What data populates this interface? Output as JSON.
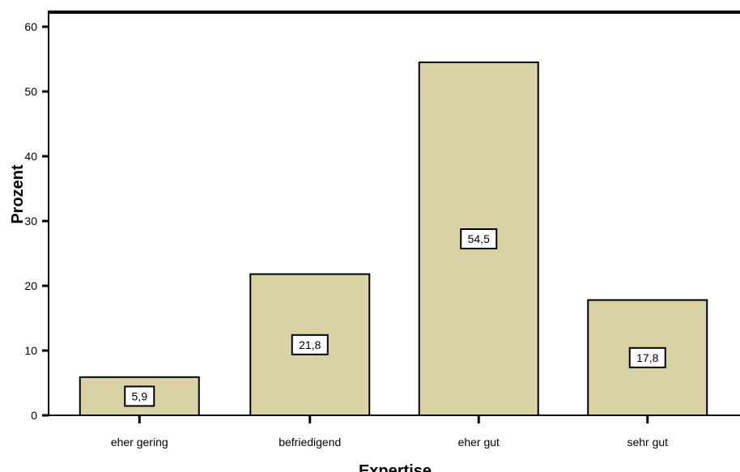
{
  "chart_data": {
    "type": "bar",
    "title": "",
    "xlabel": "Expertise",
    "ylabel": "Prozent",
    "categories": [
      "eher gering",
      "befriedigend",
      "eher gut",
      "sehr gut"
    ],
    "values": [
      5.9,
      21.8,
      54.5,
      17.8
    ],
    "data_labels": [
      "5,9",
      "21,8",
      "54,5",
      "17,8"
    ],
    "ylim": [
      0,
      62
    ],
    "yticks": [
      0,
      10,
      20,
      30,
      40,
      50,
      60
    ],
    "ytick_labels": [
      "0",
      "10",
      "20",
      "30",
      "40",
      "50",
      "60"
    ],
    "grid": false,
    "legend": "none",
    "colors": {
      "bar_fill": "#d8d2a6",
      "bar_stroke": "#000000",
      "label_box": "#ffffff"
    }
  }
}
